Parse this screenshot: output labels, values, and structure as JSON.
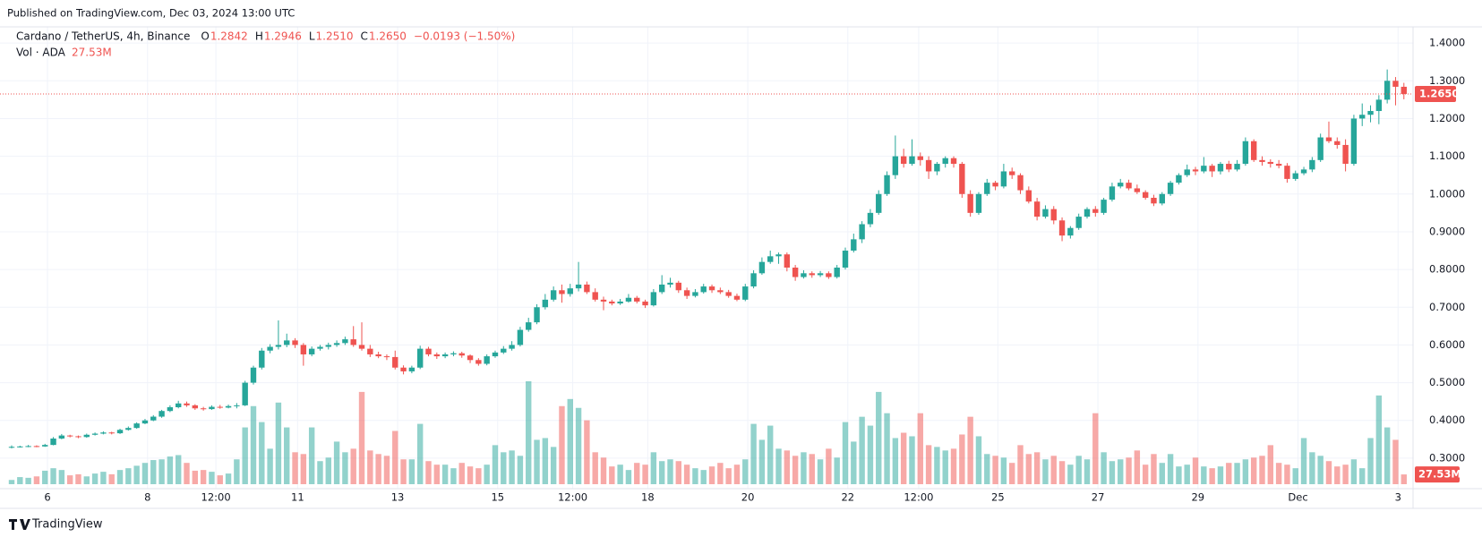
{
  "chart_data": {
    "type": "candlestick",
    "published": "Published on TradingView.com, Dec 03, 2024 13:00 UTC",
    "symbol": "Cardano / TetherUS, 4h, Binance",
    "ohlc_header": [
      {
        "key": "O",
        "value": "1.2842"
      },
      {
        "key": "H",
        "value": "1.2946"
      },
      {
        "key": "L",
        "value": "1.2510"
      },
      {
        "key": "C",
        "value": "1.2650"
      }
    ],
    "change": "−0.0193 (−1.50%)",
    "volume_title": "Vol · ADA",
    "volume_last": "27.53M",
    "brand": "TradingView",
    "up_color": "#26a69a",
    "down_color": "#ef5350",
    "grid": true,
    "ylim": [
      0.231,
      1.443
    ],
    "yticks": [
      {
        "value": 0.3,
        "label": "0.3000"
      },
      {
        "value": 0.4,
        "label": "0.4000"
      },
      {
        "value": 0.5,
        "label": "0.5000"
      },
      {
        "value": 0.6,
        "label": "0.6000"
      },
      {
        "value": 0.7,
        "label": "0.7000"
      },
      {
        "value": 0.8,
        "label": "0.8000"
      },
      {
        "value": 0.9,
        "label": "0.9000"
      },
      {
        "value": 1.0,
        "label": "1.0000"
      },
      {
        "value": 1.1,
        "label": "1.1000"
      },
      {
        "value": 1.2,
        "label": "1.2000"
      },
      {
        "value": 1.3,
        "label": "1.3000"
      },
      {
        "value": 1.4,
        "label": "1.4000"
      }
    ],
    "xticks": [
      {
        "value": 4.3,
        "label": "6"
      },
      {
        "value": 16.3,
        "label": "8"
      },
      {
        "value": 24.5,
        "label": "12:00"
      },
      {
        "value": 34.3,
        "label": "11"
      },
      {
        "value": 46.3,
        "label": "13"
      },
      {
        "value": 58.3,
        "label": "15"
      },
      {
        "value": 67.3,
        "label": "12:00"
      },
      {
        "value": 76.3,
        "label": "18"
      },
      {
        "value": 88.3,
        "label": "20"
      },
      {
        "value": 100.3,
        "label": "22"
      },
      {
        "value": 108.8,
        "label": "12:00"
      },
      {
        "value": 118.3,
        "label": "25"
      },
      {
        "value": 130.3,
        "label": "27"
      },
      {
        "value": 142.3,
        "label": "29"
      },
      {
        "value": 154.3,
        "label": "Dec"
      },
      {
        "value": 166.3,
        "label": "3"
      }
    ],
    "last_price_label": "1.2650",
    "candles": [
      [
        0.328,
        0.334,
        0.326,
        0.33
      ],
      [
        0.33,
        0.333,
        0.328,
        0.331
      ],
      [
        0.331,
        0.335,
        0.329,
        0.332
      ],
      [
        0.332,
        0.334,
        0.329,
        0.331
      ],
      [
        0.331,
        0.338,
        0.33,
        0.335
      ],
      [
        0.335,
        0.356,
        0.334,
        0.352
      ],
      [
        0.352,
        0.364,
        0.35,
        0.36
      ],
      [
        0.36,
        0.362,
        0.355,
        0.358
      ],
      [
        0.358,
        0.36,
        0.353,
        0.356
      ],
      [
        0.356,
        0.365,
        0.354,
        0.362
      ],
      [
        0.362,
        0.368,
        0.36,
        0.365
      ],
      [
        0.365,
        0.371,
        0.363,
        0.368
      ],
      [
        0.368,
        0.37,
        0.363,
        0.366
      ],
      [
        0.366,
        0.378,
        0.364,
        0.375
      ],
      [
        0.375,
        0.384,
        0.373,
        0.38
      ],
      [
        0.38,
        0.395,
        0.378,
        0.392
      ],
      [
        0.392,
        0.404,
        0.39,
        0.4
      ],
      [
        0.4,
        0.414,
        0.398,
        0.41
      ],
      [
        0.41,
        0.428,
        0.407,
        0.425
      ],
      [
        0.425,
        0.44,
        0.422,
        0.435
      ],
      [
        0.435,
        0.452,
        0.432,
        0.445
      ],
      [
        0.445,
        0.45,
        0.436,
        0.44
      ],
      [
        0.44,
        0.443,
        0.428,
        0.432
      ],
      [
        0.432,
        0.436,
        0.426,
        0.43
      ],
      [
        0.43,
        0.44,
        0.428,
        0.436
      ],
      [
        0.436,
        0.441,
        0.431,
        0.434
      ],
      [
        0.434,
        0.442,
        0.432,
        0.438
      ],
      [
        0.438,
        0.446,
        0.432,
        0.44
      ],
      [
        0.44,
        0.505,
        0.438,
        0.5
      ],
      [
        0.5,
        0.545,
        0.495,
        0.54
      ],
      [
        0.54,
        0.592,
        0.535,
        0.585
      ],
      [
        0.585,
        0.602,
        0.578,
        0.595
      ],
      [
        0.595,
        0.665,
        0.588,
        0.6
      ],
      [
        0.6,
        0.63,
        0.594,
        0.612
      ],
      [
        0.612,
        0.618,
        0.592,
        0.6
      ],
      [
        0.6,
        0.605,
        0.545,
        0.575
      ],
      [
        0.575,
        0.596,
        0.57,
        0.59
      ],
      [
        0.59,
        0.6,
        0.585,
        0.595
      ],
      [
        0.595,
        0.606,
        0.588,
        0.6
      ],
      [
        0.6,
        0.612,
        0.595,
        0.605
      ],
      [
        0.605,
        0.622,
        0.6,
        0.615
      ],
      [
        0.615,
        0.65,
        0.595,
        0.6
      ],
      [
        0.6,
        0.66,
        0.585,
        0.59
      ],
      [
        0.59,
        0.6,
        0.568,
        0.575
      ],
      [
        0.575,
        0.582,
        0.565,
        0.57
      ],
      [
        0.57,
        0.575,
        0.56,
        0.568
      ],
      [
        0.568,
        0.585,
        0.535,
        0.54
      ],
      [
        0.54,
        0.546,
        0.522,
        0.53
      ],
      [
        0.53,
        0.545,
        0.525,
        0.54
      ],
      [
        0.54,
        0.598,
        0.536,
        0.59
      ],
      [
        0.59,
        0.595,
        0.57,
        0.575
      ],
      [
        0.575,
        0.58,
        0.563,
        0.57
      ],
      [
        0.57,
        0.58,
        0.565,
        0.575
      ],
      [
        0.575,
        0.583,
        0.57,
        0.578
      ],
      [
        0.578,
        0.582,
        0.566,
        0.572
      ],
      [
        0.572,
        0.575,
        0.552,
        0.56
      ],
      [
        0.56,
        0.565,
        0.545,
        0.55
      ],
      [
        0.55,
        0.575,
        0.546,
        0.57
      ],
      [
        0.57,
        0.585,
        0.566,
        0.58
      ],
      [
        0.58,
        0.597,
        0.576,
        0.59
      ],
      [
        0.59,
        0.61,
        0.585,
        0.6
      ],
      [
        0.6,
        0.648,
        0.596,
        0.64
      ],
      [
        0.64,
        0.672,
        0.635,
        0.66
      ],
      [
        0.66,
        0.708,
        0.655,
        0.7
      ],
      [
        0.7,
        0.735,
        0.694,
        0.72
      ],
      [
        0.72,
        0.755,
        0.715,
        0.745
      ],
      [
        0.745,
        0.76,
        0.712,
        0.735
      ],
      [
        0.735,
        0.762,
        0.728,
        0.75
      ],
      [
        0.75,
        0.82,
        0.742,
        0.76
      ],
      [
        0.76,
        0.768,
        0.735,
        0.74
      ],
      [
        0.74,
        0.75,
        0.715,
        0.72
      ],
      [
        0.72,
        0.728,
        0.692,
        0.715
      ],
      [
        0.715,
        0.72,
        0.705,
        0.71
      ],
      [
        0.71,
        0.722,
        0.706,
        0.715
      ],
      [
        0.715,
        0.735,
        0.712,
        0.725
      ],
      [
        0.725,
        0.73,
        0.71,
        0.715
      ],
      [
        0.715,
        0.72,
        0.698,
        0.705
      ],
      [
        0.705,
        0.748,
        0.702,
        0.74
      ],
      [
        0.74,
        0.785,
        0.735,
        0.76
      ],
      [
        0.76,
        0.778,
        0.752,
        0.765
      ],
      [
        0.765,
        0.77,
        0.738,
        0.745
      ],
      [
        0.745,
        0.752,
        0.722,
        0.73
      ],
      [
        0.73,
        0.748,
        0.726,
        0.74
      ],
      [
        0.74,
        0.762,
        0.736,
        0.755
      ],
      [
        0.755,
        0.76,
        0.738,
        0.745
      ],
      [
        0.745,
        0.752,
        0.735,
        0.74
      ],
      [
        0.74,
        0.746,
        0.725,
        0.73
      ],
      [
        0.73,
        0.736,
        0.716,
        0.72
      ],
      [
        0.72,
        0.762,
        0.716,
        0.755
      ],
      [
        0.755,
        0.798,
        0.75,
        0.79
      ],
      [
        0.79,
        0.832,
        0.786,
        0.82
      ],
      [
        0.82,
        0.85,
        0.815,
        0.835
      ],
      [
        0.835,
        0.845,
        0.815,
        0.84
      ],
      [
        0.84,
        0.845,
        0.795,
        0.805
      ],
      [
        0.805,
        0.812,
        0.77,
        0.78
      ],
      [
        0.78,
        0.798,
        0.776,
        0.79
      ],
      [
        0.79,
        0.795,
        0.778,
        0.785
      ],
      [
        0.785,
        0.796,
        0.78,
        0.79
      ],
      [
        0.79,
        0.795,
        0.775,
        0.78
      ],
      [
        0.78,
        0.812,
        0.776,
        0.805
      ],
      [
        0.805,
        0.858,
        0.8,
        0.85
      ],
      [
        0.85,
        0.895,
        0.845,
        0.88
      ],
      [
        0.88,
        0.928,
        0.87,
        0.92
      ],
      [
        0.92,
        0.96,
        0.912,
        0.95
      ],
      [
        0.95,
        1.01,
        0.945,
        1.0
      ],
      [
        1.0,
        1.06,
        0.995,
        1.05
      ],
      [
        1.05,
        1.155,
        1.04,
        1.1
      ],
      [
        1.1,
        1.12,
        1.07,
        1.08
      ],
      [
        1.08,
        1.145,
        1.075,
        1.1
      ],
      [
        1.1,
        1.11,
        1.075,
        1.09
      ],
      [
        1.09,
        1.1,
        1.04,
        1.06
      ],
      [
        1.06,
        1.085,
        1.05,
        1.08
      ],
      [
        1.08,
        1.1,
        1.07,
        1.095
      ],
      [
        1.095,
        1.1,
        1.07,
        1.08
      ],
      [
        1.08,
        1.085,
        0.99,
        1.0
      ],
      [
        1.0,
        1.01,
        0.94,
        0.95
      ],
      [
        0.95,
        1.005,
        0.945,
        1.0
      ],
      [
        1.0,
        1.04,
        0.995,
        1.03
      ],
      [
        1.03,
        1.035,
        1.01,
        1.02
      ],
      [
        1.02,
        1.08,
        1.015,
        1.06
      ],
      [
        1.06,
        1.07,
        1.04,
        1.05
      ],
      [
        1.05,
        1.055,
        1.0,
        1.01
      ],
      [
        1.01,
        1.02,
        0.975,
        0.98
      ],
      [
        0.98,
        0.99,
        0.93,
        0.94
      ],
      [
        0.94,
        0.97,
        0.935,
        0.96
      ],
      [
        0.96,
        0.968,
        0.92,
        0.93
      ],
      [
        0.93,
        0.938,
        0.875,
        0.89
      ],
      [
        0.89,
        0.915,
        0.882,
        0.91
      ],
      [
        0.91,
        0.948,
        0.905,
        0.94
      ],
      [
        0.94,
        0.965,
        0.935,
        0.96
      ],
      [
        0.96,
        0.968,
        0.94,
        0.95
      ],
      [
        0.95,
        0.99,
        0.945,
        0.985
      ],
      [
        0.985,
        1.03,
        0.98,
        1.02
      ],
      [
        1.02,
        1.04,
        1.015,
        1.03
      ],
      [
        1.03,
        1.038,
        1.01,
        1.015
      ],
      [
        1.015,
        1.025,
        1.0,
        1.005
      ],
      [
        1.005,
        1.01,
        0.985,
        0.99
      ],
      [
        0.99,
        0.998,
        0.968,
        0.975
      ],
      [
        0.975,
        1.005,
        0.97,
        1.0
      ],
      [
        1.0,
        1.035,
        0.995,
        1.03
      ],
      [
        1.03,
        1.055,
        1.025,
        1.05
      ],
      [
        1.05,
        1.078,
        1.045,
        1.065
      ],
      [
        1.065,
        1.072,
        1.05,
        1.06
      ],
      [
        1.06,
        1.098,
        1.055,
        1.075
      ],
      [
        1.075,
        1.08,
        1.045,
        1.06
      ],
      [
        1.06,
        1.085,
        1.052,
        1.08
      ],
      [
        1.08,
        1.088,
        1.058,
        1.065
      ],
      [
        1.065,
        1.09,
        1.06,
        1.08
      ],
      [
        1.08,
        1.15,
        1.075,
        1.14
      ],
      [
        1.14,
        1.145,
        1.085,
        1.09
      ],
      [
        1.09,
        1.1,
        1.075,
        1.085
      ],
      [
        1.085,
        1.092,
        1.07,
        1.08
      ],
      [
        1.08,
        1.09,
        1.068,
        1.075
      ],
      [
        1.075,
        1.082,
        1.03,
        1.04
      ],
      [
        1.04,
        1.062,
        1.035,
        1.055
      ],
      [
        1.055,
        1.072,
        1.05,
        1.065
      ],
      [
        1.065,
        1.098,
        1.058,
        1.09
      ],
      [
        1.09,
        1.16,
        1.085,
        1.15
      ],
      [
        1.15,
        1.192,
        1.135,
        1.14
      ],
      [
        1.14,
        1.15,
        1.12,
        1.13
      ],
      [
        1.13,
        1.145,
        1.06,
        1.08
      ],
      [
        1.08,
        1.21,
        1.075,
        1.2
      ],
      [
        1.2,
        1.24,
        1.18,
        1.21
      ],
      [
        1.21,
        1.235,
        1.19,
        1.22
      ],
      [
        1.22,
        1.262,
        1.185,
        1.25
      ],
      [
        1.25,
        1.33,
        1.24,
        1.3
      ],
      [
        1.3,
        1.31,
        1.235,
        1.2842
      ],
      [
        1.2842,
        1.2946,
        1.251,
        1.265
      ]
    ],
    "volumes": [
      12,
      20,
      18,
      22,
      38,
      45,
      40,
      25,
      28,
      22,
      30,
      35,
      28,
      40,
      45,
      52,
      60,
      68,
      70,
      78,
      82,
      60,
      38,
      40,
      35,
      25,
      30,
      70,
      160,
      220,
      175,
      100,
      230,
      160,
      90,
      85,
      160,
      65,
      75,
      120,
      90,
      100,
      260,
      95,
      85,
      80,
      150,
      70,
      70,
      170,
      65,
      55,
      55,
      45,
      60,
      50,
      45,
      55,
      110,
      90,
      95,
      80,
      290,
      125,
      130,
      105,
      220,
      240,
      215,
      180,
      90,
      75,
      50,
      55,
      40,
      60,
      55,
      90,
      65,
      70,
      65,
      55,
      45,
      40,
      50,
      60,
      45,
      55,
      70,
      170,
      125,
      165,
      100,
      95,
      80,
      90,
      85,
      70,
      100,
      75,
      175,
      120,
      190,
      165,
      260,
      200,
      130,
      145,
      135,
      200,
      110,
      105,
      95,
      100,
      140,
      190,
      135,
      85,
      80,
      75,
      60,
      110,
      85,
      90,
      70,
      80,
      65,
      55,
      80,
      70,
      200,
      90,
      65,
      70,
      75,
      95,
      55,
      85,
      60,
      85,
      50,
      55,
      75,
      50,
      45,
      50,
      60,
      60,
      70,
      75,
      80,
      110,
      60,
      55,
      45,
      130,
      90,
      80,
      65,
      50,
      55,
      70,
      45,
      130,
      250,
      160,
      125,
      27.53
    ]
  }
}
